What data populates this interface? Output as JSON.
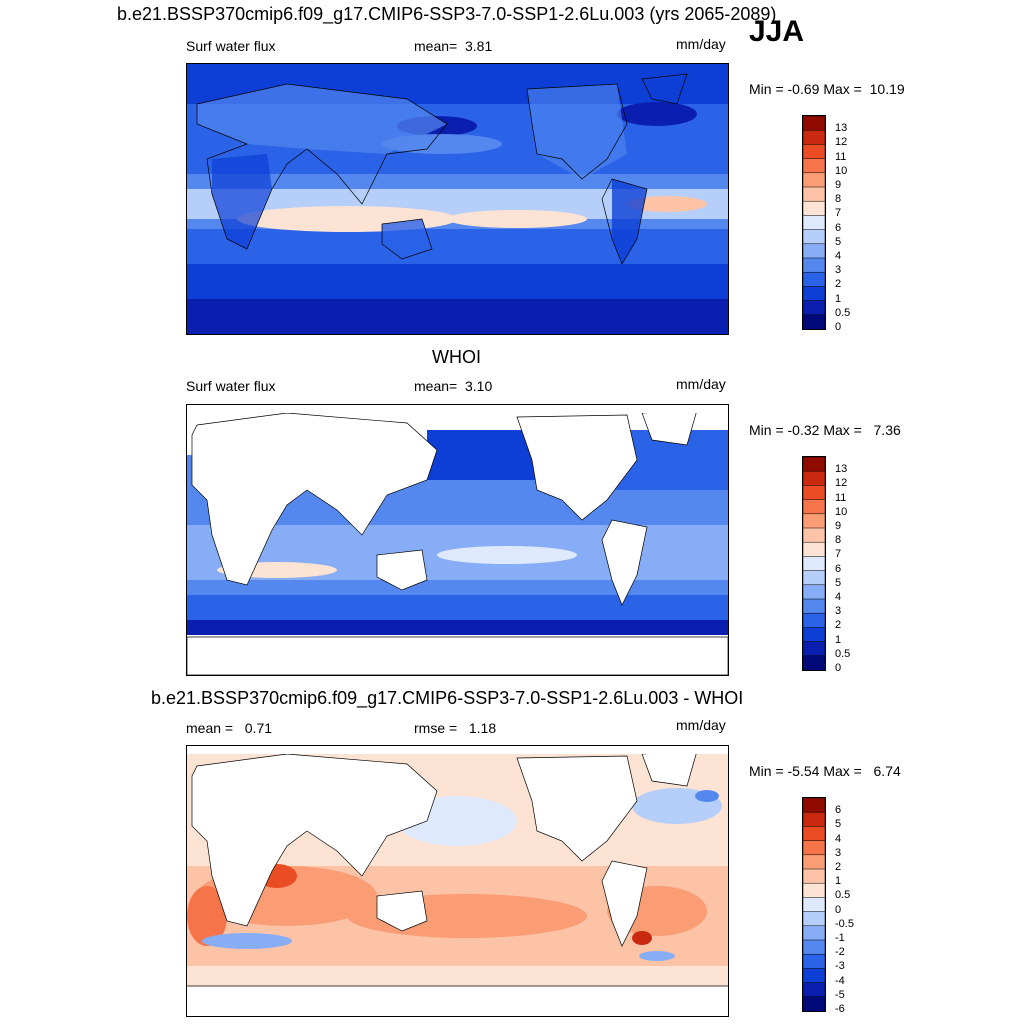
{
  "figure": {
    "title_top": "b.e21.BSSP370cmip6.f09_g17.CMIP6-SSP3-7.0-SSP1-2.6Lu.003 (yrs 2065-2089)",
    "season": "JJA"
  },
  "panels": [
    {
      "id": "model",
      "subtitle": "",
      "left_label": "Surf water flux",
      "stat_label": "mean=",
      "stat_value": "3.81",
      "units": "mm/day",
      "min_label": "Min =",
      "min_value": "-0.69",
      "max_label": "Max =",
      "max_value": "10.19",
      "colorbar_labels": [
        "13",
        "12",
        "11",
        "10",
        "9",
        "8",
        "7",
        "6",
        "5",
        "4",
        "3",
        "2",
        "1",
        "0.5",
        "0"
      ]
    },
    {
      "id": "obs",
      "subtitle": "WHOI",
      "left_label": "Surf water flux",
      "stat_label": "mean=",
      "stat_value": "3.10",
      "units": "mm/day",
      "min_label": "Min =",
      "min_value": "-0.32",
      "max_label": "Max =",
      "max_value": "7.36",
      "colorbar_labels": [
        "13",
        "12",
        "11",
        "10",
        "9",
        "8",
        "7",
        "6",
        "5",
        "4",
        "3",
        "2",
        "1",
        "0.5",
        "0"
      ]
    },
    {
      "id": "diff",
      "subtitle": "b.e21.BSSP370cmip6.f09_g17.CMIP6-SSP3-7.0-SSP1-2.6Lu.003 - WHOI",
      "left_label": "mean =",
      "left_value": "0.71",
      "stat_label": "rmse =",
      "stat_value": "1.18",
      "units": "mm/day",
      "min_label": "Min =",
      "min_value": "-5.54",
      "max_label": "Max =",
      "max_value": "6.74",
      "colorbar_labels": [
        "6",
        "5",
        "4",
        "3",
        "2",
        "1",
        "0.5",
        "0",
        "-0.5",
        "-1",
        "-2",
        "-3",
        "-4",
        "-5",
        "-6"
      ]
    }
  ],
  "colors": {
    "seq_scale": [
      "#00087a",
      "#0a1fb0",
      "#0d3fd6",
      "#2a62e8",
      "#5488ee",
      "#86adf5",
      "#b5cffa",
      "#dfe9fd",
      "#fde3d4",
      "#fcc3a6",
      "#fa9d75",
      "#f6744a",
      "#ea4d24",
      "#c9290f",
      "#8f0b00"
    ],
    "div_scale": [
      "#00087a",
      "#0a1fb0",
      "#0d3fd6",
      "#2a62e8",
      "#5488ee",
      "#86adf5",
      "#b5cffa",
      "#dfe9fd",
      "#fde3d4",
      "#fcc3a6",
      "#fa9d75",
      "#f6744a",
      "#ea4d24",
      "#c9290f",
      "#8f0b00"
    ],
    "land": "#ffffff"
  }
}
